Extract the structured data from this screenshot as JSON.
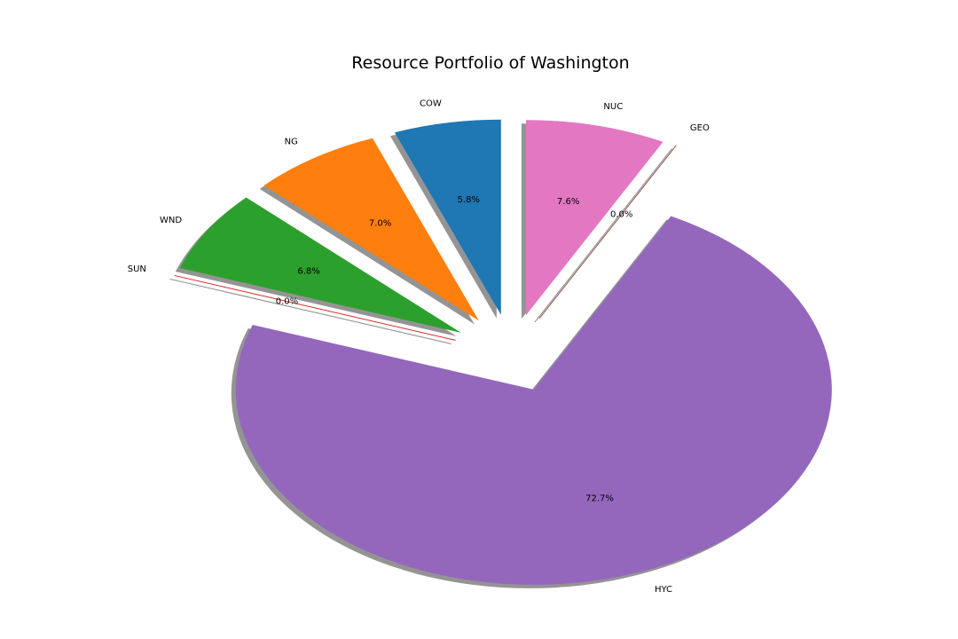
{
  "chart_data": {
    "type": "pie",
    "title": "Resource Portfolio of Washington",
    "start_angle_deg": 90,
    "direction": "counterclockwise",
    "shadow": true,
    "slices": [
      {
        "label": "COW",
        "value": 5.8,
        "pct_label": "5.8%",
        "color": "#1f77b4",
        "exploded": true
      },
      {
        "label": "NG",
        "value": 7.0,
        "pct_label": "7.0%",
        "color": "#ff7f0e",
        "exploded": true
      },
      {
        "label": "WND",
        "value": 6.8,
        "pct_label": "6.8%",
        "color": "#2ca02c",
        "exploded": true
      },
      {
        "label": "SUN",
        "value": 0.0,
        "pct_label": "0.0%",
        "color": "#d62728",
        "exploded": true
      },
      {
        "label": "HYC",
        "value": 72.7,
        "pct_label": "72.7%",
        "color": "#9467bd",
        "exploded": true
      },
      {
        "label": "GEO",
        "value": 0.0,
        "pct_label": "0.0%",
        "color": "#8c564b",
        "exploded": true
      },
      {
        "label": "NUC",
        "value": 7.6,
        "pct_label": "7.6%",
        "color": "#e377c2",
        "exploded": true
      }
    ]
  }
}
